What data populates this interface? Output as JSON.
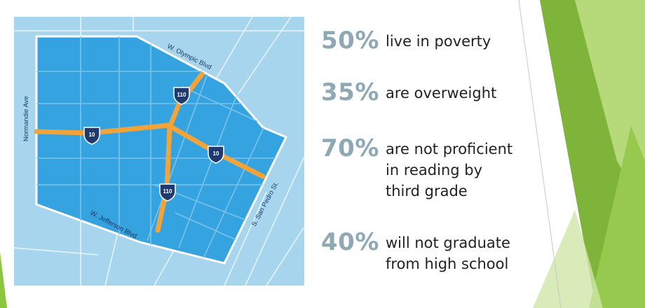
{
  "map": {
    "streets": {
      "olympic": "W. Olympic Blvd",
      "normandie": "Normandie Ave",
      "jefferson": "W. Jefferson Blvd",
      "san_pedro": "S. San Pedro St."
    },
    "shields": {
      "i10_west": "10",
      "i110_north": "110",
      "i10_east": "10",
      "i110_south": "110"
    }
  },
  "stats": [
    {
      "percent": "50%",
      "text": "live in poverty"
    },
    {
      "percent": "35%",
      "text": "are overweight"
    },
    {
      "percent": "70%",
      "text": "are not proficient\nin reading by\nthird grade"
    },
    {
      "percent": "40%",
      "text": "will not graduate\nfrom high school"
    }
  ],
  "colors": {
    "map_outside": "#a8d5ee",
    "map_zone": "#34a3e0",
    "freeway": "#f2a33a",
    "shield": "#1e3a6e",
    "percent": "#8ea8b4",
    "accent_green": "#8cc63f"
  }
}
